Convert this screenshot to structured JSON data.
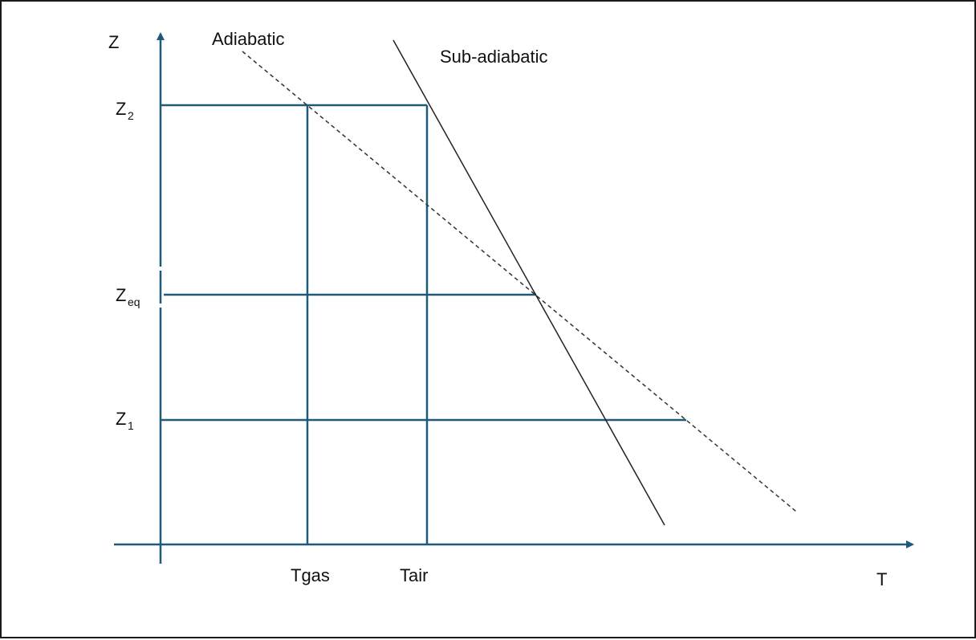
{
  "axes": {
    "y_label": "Z",
    "x_label": "T"
  },
  "levels": {
    "z2": {
      "base": "Z",
      "sub": "2"
    },
    "zeq": {
      "base": "Z",
      "sub": "eq"
    },
    "z1": {
      "base": "Z",
      "sub": "1"
    }
  },
  "temperatures": {
    "tgas": "Tgas",
    "tair": "Tair"
  },
  "curves": {
    "adiabatic": "Adiabatic",
    "sub_adiabatic": "Sub-adiabatic"
  },
  "colors": {
    "axis": "#1f5a7a",
    "grid": "#1f5a7a",
    "adiabatic": "#333333",
    "sub_adiabatic": "#222222",
    "border": "#1a1a1a"
  },
  "styles": {
    "adiabatic_line": "dashed",
    "sub_adiabatic_line": "solid"
  }
}
